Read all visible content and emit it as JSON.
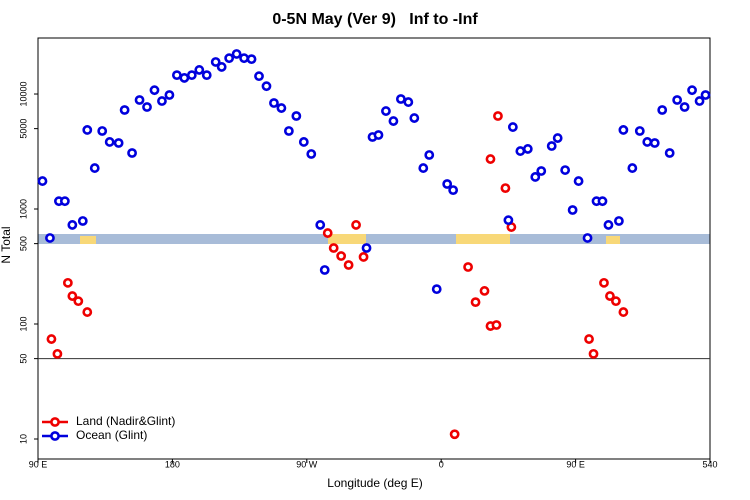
{
  "chart_data": {
    "type": "scatter",
    "title": "0-5N May (Ver 9)   Inf to -Inf",
    "x_label": "Longitude (deg E)",
    "y_label": "N Total",
    "log_y": true,
    "legend_position": "bottom-left",
    "reference_line": 50,
    "xlim": [
      90,
      540
    ],
    "ylim": [
      6.7,
      30700
    ],
    "xticks": [
      {
        "value": 90,
        "label": "90 E"
      },
      180,
      {
        "value": 270,
        "label": "90 W"
      },
      {
        "value": 360,
        "label": "0"
      },
      {
        "value": 450,
        "label": "90 E"
      },
      540
    ],
    "yticks": [
      10,
      50,
      100,
      500,
      1000,
      5000,
      10000
    ],
    "series": [
      {
        "name": "Land (Nadir&Glint)",
        "color": "#ee0000",
        "x": [
          99,
          103,
          110,
          113,
          117,
          123,
          284,
          288,
          293,
          298,
          303,
          308,
          378,
          383,
          389,
          393,
          397,
          393,
          398,
          403,
          407,
          369,
          459,
          462,
          469,
          473,
          477,
          482
        ],
        "values": [
          74,
          55,
          228,
          175,
          158,
          127,
          618,
          458,
          390,
          326,
          727,
          383,
          313,
          155,
          194,
          96,
          98,
          2720,
          6440,
          1520,
          697,
          11,
          74,
          55,
          228,
          175,
          158,
          127
        ]
      },
      {
        "name": "Ocean (Glint)",
        "color": "#0000dd",
        "x": [
          93,
          98,
          104,
          108,
          113,
          120,
          123,
          128,
          133,
          138,
          144,
          148,
          153,
          158,
          163,
          168,
          173,
          178,
          183,
          188,
          193,
          198,
          203,
          209,
          213,
          218,
          223,
          228,
          233,
          238,
          243,
          248,
          253,
          258,
          263,
          268,
          273,
          279,
          282,
          310,
          314,
          318,
          323,
          328,
          333,
          338,
          342,
          348,
          352,
          357,
          364,
          368,
          405,
          408,
          413,
          418,
          423,
          427,
          434,
          438,
          443,
          448,
          452,
          458,
          464,
          468,
          472,
          479,
          482,
          488,
          493,
          498,
          503,
          508,
          513,
          518,
          523,
          528,
          533,
          537
        ],
        "values": [
          1750,
          560,
          1170,
          1170,
          727,
          787,
          4870,
          2270,
          4770,
          3830,
          3750,
          7260,
          3070,
          8870,
          7710,
          10800,
          8690,
          9800,
          14600,
          13800,
          14600,
          16200,
          14600,
          19000,
          17200,
          20500,
          22300,
          20500,
          20100,
          14300,
          11700,
          8350,
          7550,
          4770,
          6440,
          3830,
          3010,
          727,
          295,
          458,
          4230,
          4400,
          7110,
          5820,
          9050,
          8510,
          6180,
          2270,
          2950,
          201,
          1650,
          1460,
          800,
          5160,
          3190,
          3330,
          1900,
          2140,
          3530,
          4140,
          2180,
          980,
          1750,
          560,
          1170,
          1170,
          727,
          787,
          4870,
          2270,
          4770,
          3830,
          3750,
          7260,
          3070,
          8870,
          7710,
          10800,
          8690,
          9800
        ]
      }
    ]
  }
}
